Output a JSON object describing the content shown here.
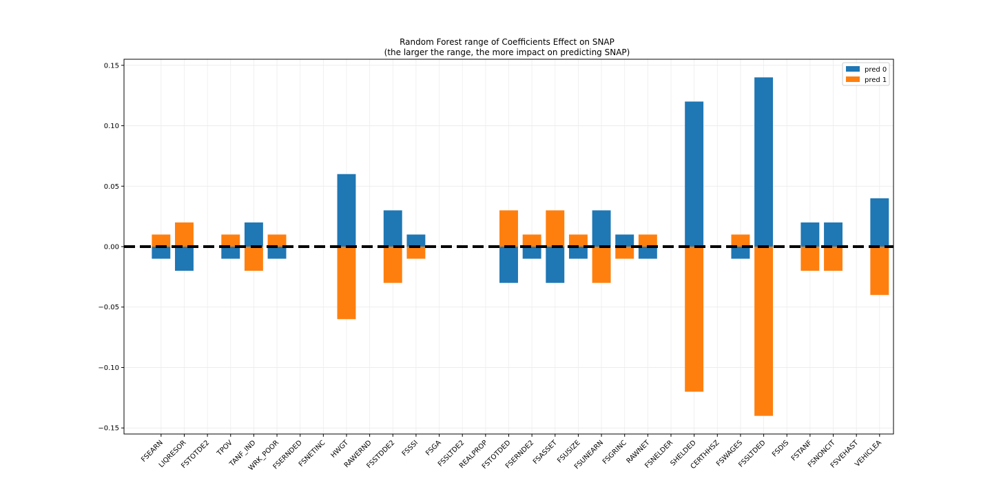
{
  "chart_data": {
    "type": "bar",
    "title_line1": "Random Forest range of Coefficients Effect on SNAP",
    "title_line2": "(the larger the range, the more impact on predicting SNAP)",
    "xlabel": "",
    "ylabel": "",
    "ylim": [
      -0.155,
      0.155
    ],
    "yticks": [
      0.15,
      0.1,
      0.05,
      0.0,
      -0.05,
      -0.1,
      -0.15
    ],
    "ytick_labels": [
      "0.15",
      "0.10",
      "0.05",
      "0.00",
      "−0.05",
      "−0.10",
      "−0.15"
    ],
    "grid": true,
    "legend_position": "upper right",
    "reference_line": {
      "y": 0,
      "style": "dashed",
      "color": "#000000"
    },
    "categories": [
      "FSEARN",
      "LIQRESOR",
      "FSTOTDE2",
      "TPOV",
      "TANF_IND",
      "WRK_POOR",
      "FSERNDED",
      "FSNETINC",
      "HWGT",
      "RAWERND",
      "FSSTDDE2",
      "FSSSI",
      "FSGA",
      "FSSLTDE2",
      "REALPROP",
      "FSTOTDED",
      "FSERNDE2",
      "FSASSET",
      "FSUSIZE",
      "FSUNEARN",
      "FSGRINC",
      "RAWNET",
      "FSNELDER",
      "SHELDED",
      "CERTHHSZ",
      "FSWAGES",
      "FSSLTDED",
      "FSDIS",
      "FSTANF",
      "FSNONCIT",
      "FSVEHAST",
      "VEHICLEA"
    ],
    "series": [
      {
        "name": "pred 0",
        "color": "#1f77b4",
        "values": [
          -0.01,
          -0.02,
          0,
          -0.01,
          0.02,
          -0.01,
          0,
          0,
          0.06,
          0,
          0.03,
          0.01,
          0,
          0,
          0,
          -0.03,
          -0.01,
          -0.03,
          -0.01,
          0.03,
          0.01,
          -0.01,
          0,
          0.12,
          0,
          -0.01,
          0.14,
          0,
          0.02,
          0.02,
          0,
          0.04
        ]
      },
      {
        "name": "pred 1",
        "color": "#ff7f0e",
        "values": [
          0.01,
          0.02,
          0,
          0.01,
          -0.02,
          0.01,
          0,
          0,
          -0.06,
          0,
          -0.03,
          -0.01,
          0,
          0,
          0,
          0.03,
          0.01,
          0.03,
          0.01,
          -0.03,
          -0.01,
          0.01,
          0,
          -0.12,
          0,
          0.01,
          -0.14,
          0,
          -0.02,
          -0.02,
          0,
          -0.04
        ]
      }
    ]
  }
}
